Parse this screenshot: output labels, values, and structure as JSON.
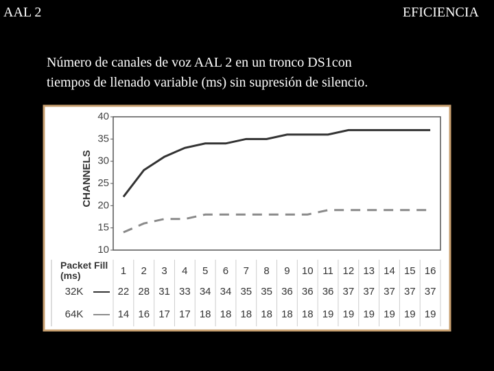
{
  "slide": {
    "left_title": "AAL 2",
    "right_title": "EFICIENCIA",
    "caption": [
      "Número de canales de voz AAL 2 en un tronco DS1con",
      "tiempos de llenado variable (ms) sin supresión de silencio."
    ]
  },
  "chart_data": {
    "type": "line",
    "ylabel": "CHANNELS",
    "xlabel": "Packet Fill (ms)",
    "categories": [
      "1",
      "2",
      "3",
      "4",
      "5",
      "6",
      "7",
      "8",
      "9",
      "10",
      "11",
      "12",
      "13",
      "14",
      "15",
      "16"
    ],
    "series": [
      {
        "name": "32K",
        "color": "#333333",
        "dash": false,
        "values": [
          22,
          28,
          31,
          33,
          34,
          34,
          35,
          35,
          36,
          36,
          36,
          37,
          37,
          37,
          37,
          37
        ]
      },
      {
        "name": "64K",
        "color": "#8a8a8a",
        "dash": true,
        "values": [
          14,
          16,
          17,
          17,
          18,
          18,
          18,
          18,
          18,
          18,
          19,
          19,
          19,
          19,
          19,
          19
        ]
      }
    ],
    "ylim": [
      10,
      40
    ],
    "yticks": [
      10,
      15,
      20,
      25,
      30,
      35,
      40
    ],
    "grid": false
  }
}
